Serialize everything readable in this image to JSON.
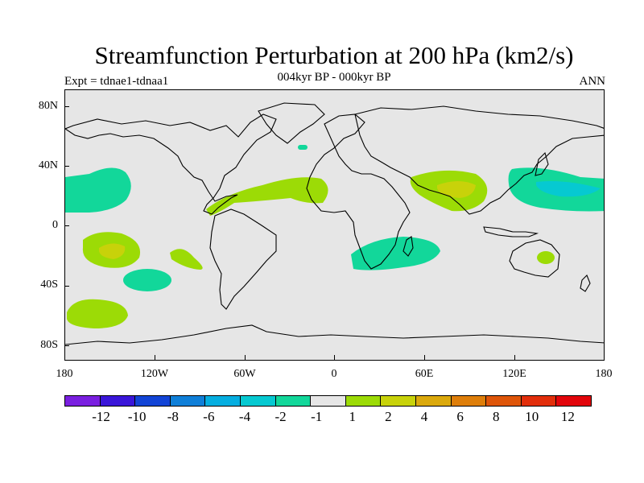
{
  "header": {
    "title": "Streamfunction Perturbation at 200 hPa (km2/s)",
    "subtitle": "004kyr BP - 000kyr BP",
    "left": "Expt = tdnae1-tdnaa1",
    "right": "ANN"
  },
  "axes": {
    "lat_labels": [
      "80N",
      "40N",
      "0",
      "40S",
      "80S"
    ],
    "lon_labels": [
      "180",
      "120W",
      "60W",
      "0",
      "60E",
      "120E",
      "180"
    ]
  },
  "colorbar": {
    "colors": [
      "#7a1fe0",
      "#3a16d9",
      "#1244d6",
      "#0f7fd8",
      "#05aee0",
      "#06c9d1",
      "#12d79a",
      "#e6e6e6",
      "#9cdb06",
      "#c8d20a",
      "#dba90c",
      "#de7e0a",
      "#de5509",
      "#e22e0b",
      "#e2050b"
    ],
    "labels": [
      "-12",
      "-10",
      "-8",
      "-6",
      "-4",
      "-2",
      "-1",
      "1",
      "2",
      "4",
      "6",
      "8",
      "10",
      "12"
    ]
  },
  "map_data": {
    "regions": [
      {
        "name": "north-pacific-east-negative",
        "class": "-2 to -1",
        "color": "#12d79a"
      },
      {
        "name": "caribbean-atlantic-positive",
        "class": "1 to 2",
        "color": "#9cdb06"
      },
      {
        "name": "south-pacific-positive",
        "class": "1 to 4",
        "color": "#9cdb06"
      },
      {
        "name": "south-pacific-small-positive",
        "class": "1 to 2",
        "color": "#9cdb06"
      },
      {
        "name": "south-pacific-negative",
        "class": "-2 to -1",
        "color": "#12d79a"
      },
      {
        "name": "southern-ocean-positive",
        "class": "1 to 2",
        "color": "#9cdb06"
      },
      {
        "name": "north-atlantic-negative",
        "class": "-2 to -1",
        "color": "#12d79a"
      },
      {
        "name": "south-africa-indian-negative",
        "class": "-2 to -1",
        "color": "#12d79a"
      },
      {
        "name": "tibet-india-positive",
        "class": "1 to 4",
        "color": "#9cdb06"
      },
      {
        "name": "east-asia-west-pacific-negative",
        "class": "-4 to -1",
        "color": "#12d79a"
      },
      {
        "name": "australia-positive",
        "class": "1 to 2",
        "color": "#9cdb06"
      }
    ]
  }
}
